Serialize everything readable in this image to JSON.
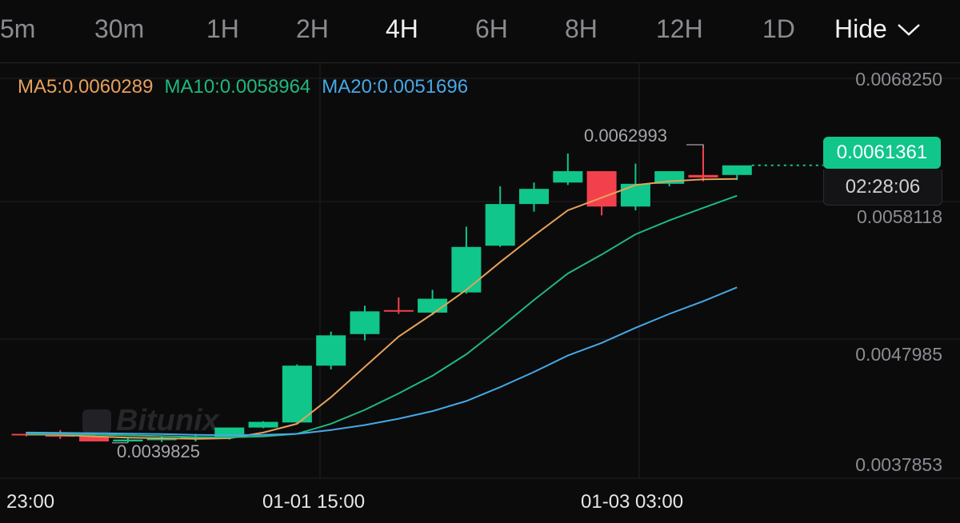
{
  "intervals": [
    "5m",
    "30m",
    "1H",
    "2H",
    "4H",
    "6H",
    "8H",
    "12H",
    "1D"
  ],
  "active_interval": "4H",
  "hide_label": "Hide",
  "ma_legend": [
    {
      "text": "MA5:0.0060289",
      "color": "#e8a15a"
    },
    {
      "text": "MA10:0.0058964",
      "color": "#20b87d"
    },
    {
      "text": "MA20:0.0051696",
      "color": "#46a8e6"
    }
  ],
  "current_price": "0.0061361",
  "countdown": "02:28:06",
  "high_annotation": "0.0062993",
  "low_annotation": "0.0039825",
  "watermark": "Bitunix",
  "colors": {
    "up": "#10c68a",
    "down": "#f2414d",
    "background": "#0b0b0c",
    "grid": "#222226"
  },
  "chart_data": {
    "type": "candlestick",
    "y_axis_labels": [
      "0.0068250",
      "0.0058118",
      "0.0047985",
      "0.0037853"
    ],
    "x_axis_labels": [
      "23:00",
      "01-01 15:00",
      "01-03 03:00"
    ],
    "ylim": [
      0.0037853,
      0.006825
    ],
    "candles": [
      {
        "o": 0.00401,
        "h": 0.004025,
        "l": 0.00399,
        "c": 0.004
      },
      {
        "o": 0.004,
        "h": 0.00404,
        "l": 0.00397,
        "c": 0.00399
      },
      {
        "o": 0.00399,
        "h": 0.00402,
        "l": 0.00395,
        "c": 0.00395
      },
      {
        "o": 0.00395,
        "h": 0.003985,
        "l": 0.00394,
        "c": 0.003965
      },
      {
        "o": 0.00396,
        "h": 0.00399,
        "l": 0.003945,
        "c": 0.003975
      },
      {
        "o": 0.00397,
        "h": 0.00401,
        "l": 0.00395,
        "c": 0.003985
      },
      {
        "o": 0.00398,
        "h": 0.00406,
        "l": 0.003965,
        "c": 0.00406
      },
      {
        "o": 0.00406,
        "h": 0.00411,
        "l": 0.004055,
        "c": 0.004105
      },
      {
        "o": 0.0041,
        "h": 0.00456,
        "l": 0.00409,
        "c": 0.00455
      },
      {
        "o": 0.00455,
        "h": 0.00482,
        "l": 0.00452,
        "c": 0.00479
      },
      {
        "o": 0.0048,
        "h": 0.005025,
        "l": 0.00475,
        "c": 0.00498
      },
      {
        "o": 0.00499,
        "h": 0.00509,
        "l": 0.00496,
        "c": 0.004985
      },
      {
        "o": 0.00497,
        "h": 0.00515,
        "l": 0.00495,
        "c": 0.00508
      },
      {
        "o": 0.00513,
        "h": 0.00565,
        "l": 0.00512,
        "c": 0.00549
      },
      {
        "o": 0.0055,
        "h": 0.00597,
        "l": 0.00549,
        "c": 0.00583
      },
      {
        "o": 0.00583,
        "h": 0.006,
        "l": 0.00577,
        "c": 0.00595
      },
      {
        "o": 0.006,
        "h": 0.00623,
        "l": 0.00598,
        "c": 0.00609
      },
      {
        "o": 0.00609,
        "h": 0.00609,
        "l": 0.00574,
        "c": 0.00581
      },
      {
        "o": 0.00581,
        "h": 0.00615,
        "l": 0.00578,
        "c": 0.00599
      },
      {
        "o": 0.00599,
        "h": 0.00609,
        "l": 0.00597,
        "c": 0.00609
      },
      {
        "o": 0.00606,
        "h": 0.006299,
        "l": 0.00601,
        "c": 0.00604
      },
      {
        "o": 0.00606,
        "h": 0.00611,
        "l": 0.00602,
        "c": 0.006136
      }
    ],
    "ma": [
      {
        "name": "MA5",
        "color": "#e8a15a",
        "values": [
          0.004005,
          0.004002,
          0.00399,
          0.00398,
          0.003975,
          0.00397,
          0.003975,
          0.00402,
          0.00409,
          0.0043,
          0.00454,
          0.00478,
          0.00496,
          0.00515,
          0.00537,
          0.00558,
          0.00578,
          0.00588,
          0.00598,
          0.00601,
          0.006025,
          0.006029
        ]
      },
      {
        "name": "MA10",
        "color": "#20b87d",
        "values": [
          0.00401,
          0.004008,
          0.004004,
          0.003998,
          0.003992,
          0.003985,
          0.003982,
          0.00399,
          0.00401,
          0.00409,
          0.0042,
          0.00433,
          0.00447,
          0.00464,
          0.00485,
          0.00507,
          0.00528,
          0.00543,
          0.00559,
          0.0057,
          0.0058,
          0.005896
        ]
      },
      {
        "name": "MA20",
        "color": "#46a8e6",
        "values": [
          0.00402,
          0.004018,
          0.004015,
          0.004012,
          0.004008,
          0.004002,
          0.004,
          0.004002,
          0.00401,
          0.00404,
          0.00408,
          0.00413,
          0.00419,
          0.00427,
          0.00438,
          0.0045,
          0.00463,
          0.00473,
          0.00485,
          0.00496,
          0.00506,
          0.00517
        ]
      }
    ]
  }
}
